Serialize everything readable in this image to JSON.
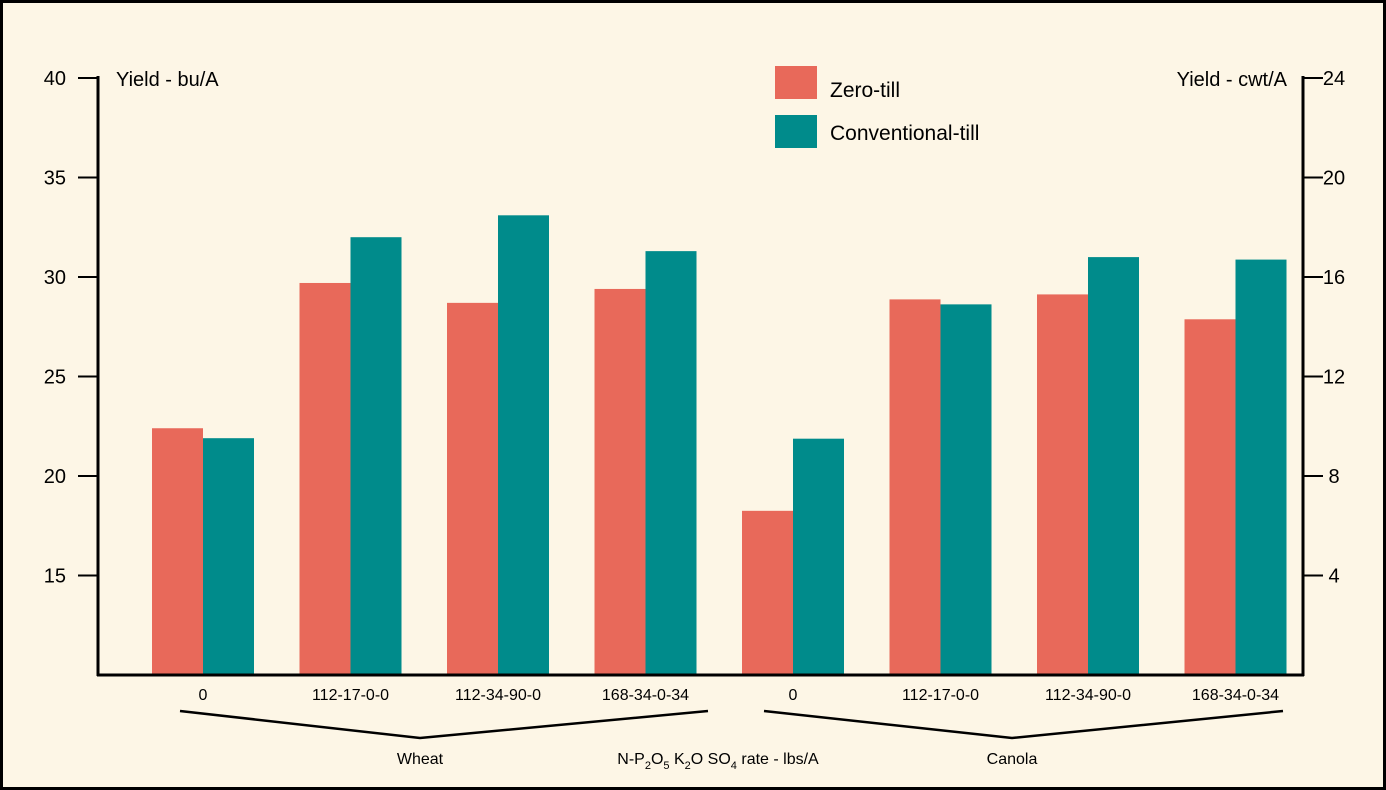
{
  "chart_data": {
    "type": "bar",
    "groups": [
      {
        "name": "Wheat",
        "categories": [
          "0",
          "112-17-0-0",
          "112-34-90-0",
          "168-34-0-34"
        ]
      },
      {
        "name": "Canola",
        "categories": [
          "0",
          "112-17-0-0",
          "112-34-90-0",
          "168-34-0-34"
        ]
      }
    ],
    "categories": [
      "0",
      "112-17-0-0",
      "112-34-90-0",
      "168-34-0-34",
      "0",
      "112-17-0-0",
      "112-34-90-0",
      "168-34-0-34"
    ],
    "series": [
      {
        "name": "Zero-till",
        "color": "#e8695a",
        "wheat_bu_per_A": [
          22.4,
          29.7,
          28.7,
          29.4
        ],
        "canola_cwt_per_A": [
          6.6,
          15.1,
          15.3,
          14.3
        ]
      },
      {
        "name": "Conventional-till",
        "color": "#008b8b",
        "wheat_bu_per_A": [
          21.9,
          32.0,
          33.1,
          31.3
        ],
        "canola_cwt_per_A": [
          9.5,
          14.9,
          16.8,
          16.7
        ]
      }
    ],
    "y_left": {
      "label": "Yield - bu/A",
      "ylim": [
        10,
        40
      ],
      "ticks": [
        15,
        20,
        25,
        30,
        35,
        40
      ]
    },
    "y_right": {
      "label": "Yield - cwt/A",
      "ylim": [
        0,
        24
      ],
      "ticks": [
        4,
        8,
        12,
        16,
        20,
        24
      ]
    },
    "xlabel_parts": {
      "a": "N-P",
      "b": "2",
      "c": "O",
      "d": "5",
      "e": " K",
      "f": "2",
      "g": "O SO",
      "h": "4",
      "i": " rate - lbs/A"
    },
    "legend_position": "top-center",
    "grid": false
  },
  "colors": {
    "background": "#fdf6e6",
    "zero_till": "#e8695a",
    "conventional_till": "#008b8b"
  }
}
